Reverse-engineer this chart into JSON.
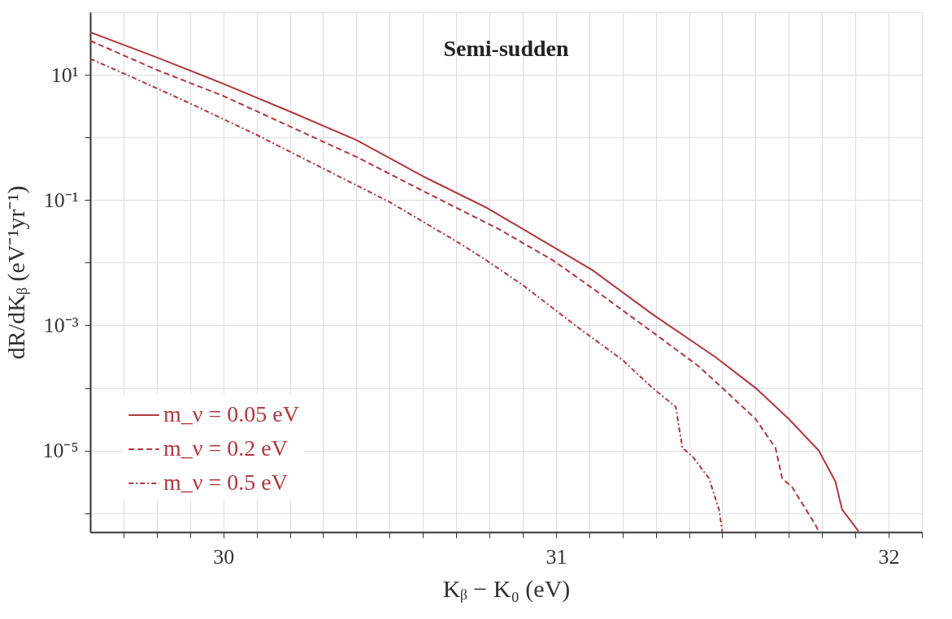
{
  "chart_data": {
    "type": "line",
    "title": "Semi-sudden",
    "xlabel": "Kᵦ − K₀   (eV)",
    "ylabel": "dR/dKᵦ   (eV⁻¹yr⁻¹)",
    "log": "y",
    "grid": true,
    "legend": "bottom left",
    "marker": "none",
    "xlim": [
      29.6,
      32.1
    ],
    "xticks": [
      {
        "value": 29.7,
        "label": null
      },
      {
        "value": 29.8,
        "label": null
      },
      {
        "value": 29.9,
        "label": null
      },
      30,
      {
        "value": 30.1,
        "label": null
      },
      {
        "value": 30.2,
        "label": null
      },
      {
        "value": 30.3,
        "label": null
      },
      {
        "value": 30.4,
        "label": null
      },
      {
        "value": 30.5,
        "label": null
      },
      {
        "value": 30.6,
        "label": null
      },
      {
        "value": 30.7,
        "label": null
      },
      {
        "value": 30.8,
        "label": null
      },
      {
        "value": 30.9,
        "label": null
      },
      31,
      {
        "value": 31.1,
        "label": null
      },
      {
        "value": 31.2,
        "label": null
      },
      {
        "value": 31.3,
        "label": null
      },
      {
        "value": 31.4,
        "label": null
      },
      {
        "value": 31.5,
        "label": null
      },
      {
        "value": 31.6,
        "label": null
      },
      {
        "value": 31.7,
        "label": null
      },
      {
        "value": 31.8,
        "label": null
      },
      {
        "value": 31.9,
        "label": null
      },
      32,
      {
        "value": 32.1,
        "label": null
      }
    ],
    "ylim": [
      5e-07,
      100
    ],
    "yticks": [
      {
        "value": 1e-06,
        "label": null
      },
      {
        "value": 1e-05,
        "label": "10⁻⁵"
      },
      {
        "value": 0.0001,
        "label": null
      },
      {
        "value": 0.001,
        "label": "10⁻³"
      },
      {
        "value": 0.01,
        "label": null
      },
      {
        "value": 0.1,
        "label": "10⁻¹"
      },
      {
        "value": 1,
        "label": null
      },
      {
        "value": 10,
        "label": "10¹"
      }
    ],
    "series": [
      {
        "name": "m_ν = 0.05 eV",
        "color": "#b0383c",
        "line_style": "solid",
        "x": [
          29.6,
          29.8,
          30.0,
          30.2,
          30.4,
          30.6,
          30.79,
          30.92,
          31.11,
          31.29,
          31.48,
          31.6,
          31.7,
          31.79,
          31.84,
          31.86,
          31.91
        ],
        "values": [
          48,
          19,
          7.2,
          2.6,
          0.91,
          0.24,
          0.076,
          0.03,
          0.0076,
          0.0015,
          0.00031,
          0.0001,
          3.2e-05,
          1e-05,
          3.2e-06,
          1.15e-06,
          5.1e-07
        ]
      },
      {
        "name": "m_ν = 0.2 eV",
        "color": "#b0383c",
        "line_style": "dashed",
        "x": [
          29.6,
          29.8,
          30.0,
          30.2,
          30.4,
          30.6,
          30.83,
          30.99,
          31.11,
          31.29,
          31.43,
          31.5,
          31.6,
          31.66,
          31.68,
          31.71,
          31.78,
          31.79
        ],
        "values": [
          35,
          12,
          4.6,
          1.5,
          0.49,
          0.14,
          0.034,
          0.011,
          0.0039,
          0.00078,
          0.00022,
          0.0001,
          3.2e-05,
          1.1e-05,
          3.6e-06,
          2.6e-06,
          6.5e-07,
          5.1e-07
        ]
      },
      {
        "name": "m_ν = 0.5 eV",
        "color": "#b0383c",
        "line_style": "dotted",
        "x": [
          29.6,
          29.71,
          29.9,
          30.1,
          30.3,
          30.5,
          30.7,
          30.79,
          30.9,
          31.06,
          31.2,
          31.29,
          31.36,
          31.38,
          31.41,
          31.46,
          31.49,
          31.5
        ],
        "values": [
          18,
          10,
          3.5,
          1.1,
          0.32,
          0.093,
          0.022,
          0.011,
          0.0044,
          0.00098,
          0.00028,
          0.0001,
          5e-05,
          1.1e-05,
          8.1e-06,
          3.6e-06,
          1.15e-06,
          5.1e-07
        ]
      }
    ]
  }
}
